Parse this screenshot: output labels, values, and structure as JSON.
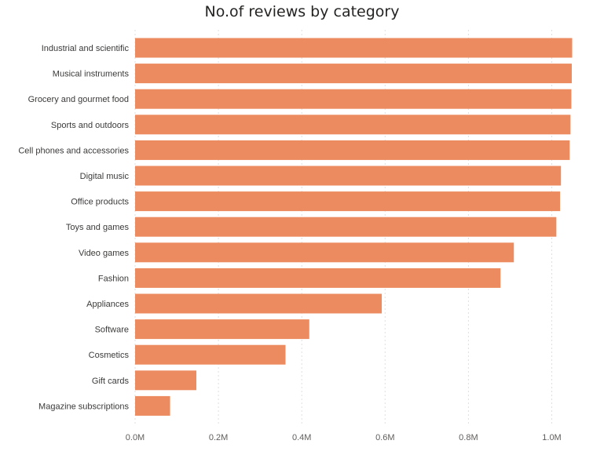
{
  "chart_data": {
    "type": "bar",
    "orientation": "horizontal",
    "title": "No.of reviews by category",
    "xlabel": "",
    "ylabel": "",
    "categories": [
      "Industrial and scientific",
      "Musical instruments",
      "Grocery and gourmet food",
      "Sports and outdoors",
      "Cell phones and accessories",
      "Digital music",
      "Office products",
      "Toys and games",
      "Video games",
      "Fashion",
      "Appliances",
      "Software",
      "Cosmetics",
      "Gift cards",
      "Magazine subscriptions"
    ],
    "values": [
      1049000,
      1048000,
      1047000,
      1045000,
      1043000,
      1022000,
      1020000,
      1011000,
      909000,
      877000,
      592000,
      418000,
      361000,
      147000,
      84000
    ],
    "xlim": [
      0,
      1050000
    ],
    "ticks": [
      {
        "value": 0,
        "label": "0.0M"
      },
      {
        "value": 200000,
        "label": "0.2M"
      },
      {
        "value": 400000,
        "label": "0.4M"
      },
      {
        "value": 600000,
        "label": "0.6M"
      },
      {
        "value": 800000,
        "label": "0.8M"
      },
      {
        "value": 1000000,
        "label": "1.0M"
      }
    ],
    "grid": true,
    "legend": "none",
    "bar_color": "#ec8b5f",
    "text_color": "#605e5c",
    "grid_color": "#e1dfdd"
  }
}
